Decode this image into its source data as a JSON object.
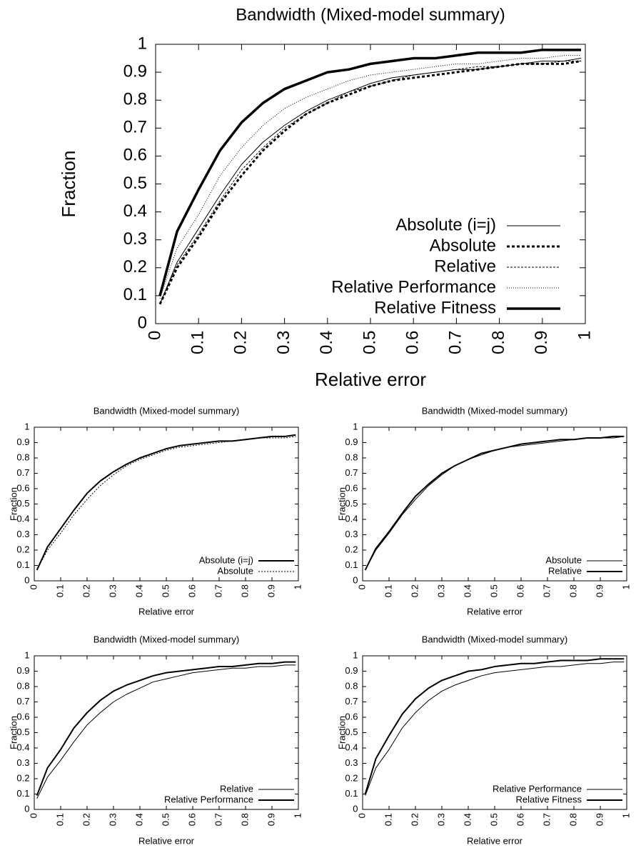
{
  "chart_data": [
    {
      "type": "line",
      "title": "Bandwidth (Mixed-model summary)",
      "xlabel": "Relative error",
      "ylabel": "Fraction",
      "xlim": [
        0,
        1
      ],
      "ylim": [
        0,
        1
      ],
      "xticks": [
        0,
        0.1,
        0.2,
        0.3,
        0.4,
        0.5,
        0.6,
        0.7,
        0.8,
        0.9,
        1
      ],
      "yticks": [
        0,
        0.1,
        0.2,
        0.3,
        0.4,
        0.5,
        0.6,
        0.7,
        0.8,
        0.9,
        1
      ],
      "grid": false,
      "legend": "lower right",
      "x": [
        0.01,
        0.05,
        0.1,
        0.15,
        0.2,
        0.25,
        0.3,
        0.35,
        0.4,
        0.45,
        0.5,
        0.55,
        0.6,
        0.65,
        0.7,
        0.75,
        0.8,
        0.85,
        0.9,
        0.95,
        0.99
      ],
      "series": [
        {
          "name": "Absolute (i=j)",
          "color": "#000000",
          "width": 1,
          "dash": "none",
          "values": [
            0.07,
            0.22,
            0.34,
            0.46,
            0.57,
            0.65,
            0.71,
            0.76,
            0.8,
            0.83,
            0.86,
            0.88,
            0.89,
            0.9,
            0.91,
            0.91,
            0.92,
            0.93,
            0.94,
            0.94,
            0.95
          ]
        },
        {
          "name": "Absolute",
          "color": "#000000",
          "width": 3,
          "dash": "4,3",
          "values": [
            0.07,
            0.2,
            0.31,
            0.43,
            0.53,
            0.62,
            0.69,
            0.75,
            0.79,
            0.82,
            0.85,
            0.87,
            0.88,
            0.89,
            0.9,
            0.91,
            0.92,
            0.93,
            0.93,
            0.93,
            0.94
          ]
        },
        {
          "name": "Relative",
          "color": "#000000",
          "width": 1,
          "dash": "3,2",
          "values": [
            0.07,
            0.21,
            0.32,
            0.44,
            0.55,
            0.63,
            0.7,
            0.75,
            0.79,
            0.83,
            0.85,
            0.87,
            0.89,
            0.9,
            0.91,
            0.92,
            0.92,
            0.93,
            0.93,
            0.94,
            0.94
          ]
        },
        {
          "name": "Relative Performance",
          "color": "#000000",
          "width": 1,
          "dash": "1,2",
          "values": [
            0.09,
            0.27,
            0.39,
            0.53,
            0.63,
            0.71,
            0.77,
            0.81,
            0.84,
            0.87,
            0.89,
            0.9,
            0.91,
            0.92,
            0.93,
            0.93,
            0.94,
            0.95,
            0.95,
            0.96,
            0.96
          ]
        },
        {
          "name": "Relative Fitness",
          "color": "#000000",
          "width": 3.5,
          "dash": "none",
          "values": [
            0.1,
            0.33,
            0.48,
            0.62,
            0.72,
            0.79,
            0.84,
            0.87,
            0.9,
            0.91,
            0.93,
            0.94,
            0.95,
            0.95,
            0.96,
            0.97,
            0.97,
            0.97,
            0.98,
            0.98,
            0.98
          ]
        }
      ]
    },
    {
      "type": "line",
      "title": "Bandwidth (Mixed-model summary)",
      "xlabel": "Relative error",
      "ylabel": "Fraction",
      "xlim": [
        0,
        1
      ],
      "ylim": [
        0,
        1
      ],
      "xticks": [
        0,
        0.1,
        0.2,
        0.3,
        0.4,
        0.5,
        0.6,
        0.7,
        0.8,
        0.9,
        1
      ],
      "yticks": [
        0,
        0.1,
        0.2,
        0.3,
        0.4,
        0.5,
        0.6,
        0.7,
        0.8,
        0.9,
        1
      ],
      "grid": false,
      "legend": "lower right",
      "x": [
        0.01,
        0.05,
        0.1,
        0.15,
        0.2,
        0.25,
        0.3,
        0.35,
        0.4,
        0.45,
        0.5,
        0.55,
        0.6,
        0.65,
        0.7,
        0.75,
        0.8,
        0.85,
        0.9,
        0.95,
        0.99
      ],
      "series": [
        {
          "name": "Absolute (i=j)",
          "color": "#000000",
          "width": 2,
          "dash": "none",
          "values": [
            0.07,
            0.22,
            0.34,
            0.46,
            0.57,
            0.65,
            0.71,
            0.76,
            0.8,
            0.83,
            0.86,
            0.88,
            0.89,
            0.9,
            0.91,
            0.91,
            0.92,
            0.93,
            0.94,
            0.94,
            0.95
          ]
        },
        {
          "name": "Absolute",
          "color": "#000000",
          "width": 1,
          "dash": "2,2",
          "values": [
            0.07,
            0.2,
            0.31,
            0.43,
            0.53,
            0.62,
            0.69,
            0.75,
            0.79,
            0.82,
            0.85,
            0.87,
            0.88,
            0.89,
            0.9,
            0.91,
            0.92,
            0.93,
            0.93,
            0.93,
            0.94
          ]
        }
      ]
    },
    {
      "type": "line",
      "title": "Bandwidth (Mixed-model summary)",
      "xlabel": "Relative error",
      "ylabel": "Fraction",
      "xlim": [
        0,
        1
      ],
      "ylim": [
        0,
        1
      ],
      "xticks": [
        0,
        0.1,
        0.2,
        0.3,
        0.4,
        0.5,
        0.6,
        0.7,
        0.8,
        0.9,
        1
      ],
      "yticks": [
        0,
        0.1,
        0.2,
        0.3,
        0.4,
        0.5,
        0.6,
        0.7,
        0.8,
        0.9,
        1
      ],
      "grid": false,
      "legend": "lower right",
      "x": [
        0.01,
        0.05,
        0.1,
        0.15,
        0.2,
        0.25,
        0.3,
        0.35,
        0.4,
        0.45,
        0.5,
        0.55,
        0.6,
        0.65,
        0.7,
        0.75,
        0.8,
        0.85,
        0.9,
        0.95,
        0.99
      ],
      "series": [
        {
          "name": "Absolute",
          "color": "#000000",
          "width": 1,
          "dash": "none",
          "values": [
            0.07,
            0.2,
            0.31,
            0.43,
            0.53,
            0.62,
            0.69,
            0.75,
            0.79,
            0.82,
            0.85,
            0.87,
            0.88,
            0.89,
            0.9,
            0.91,
            0.92,
            0.93,
            0.93,
            0.93,
            0.94
          ]
        },
        {
          "name": "Relative",
          "color": "#000000",
          "width": 2,
          "dash": "none",
          "values": [
            0.07,
            0.21,
            0.32,
            0.44,
            0.55,
            0.63,
            0.7,
            0.75,
            0.79,
            0.83,
            0.85,
            0.87,
            0.89,
            0.9,
            0.91,
            0.92,
            0.92,
            0.93,
            0.93,
            0.94,
            0.94
          ]
        }
      ]
    },
    {
      "type": "line",
      "title": "Bandwidth (Mixed-model summary)",
      "xlabel": "Relative error",
      "ylabel": "Fraction",
      "xlim": [
        0,
        1
      ],
      "ylim": [
        0,
        1
      ],
      "xticks": [
        0,
        0.1,
        0.2,
        0.3,
        0.4,
        0.5,
        0.6,
        0.7,
        0.8,
        0.9,
        1
      ],
      "yticks": [
        0,
        0.1,
        0.2,
        0.3,
        0.4,
        0.5,
        0.6,
        0.7,
        0.8,
        0.9,
        1
      ],
      "grid": false,
      "legend": "lower right",
      "x": [
        0.01,
        0.05,
        0.1,
        0.15,
        0.2,
        0.25,
        0.3,
        0.35,
        0.4,
        0.45,
        0.5,
        0.55,
        0.6,
        0.65,
        0.7,
        0.75,
        0.8,
        0.85,
        0.9,
        0.95,
        0.99
      ],
      "series": [
        {
          "name": "Relative",
          "color": "#000000",
          "width": 1,
          "dash": "none",
          "values": [
            0.07,
            0.21,
            0.32,
            0.44,
            0.55,
            0.63,
            0.7,
            0.75,
            0.79,
            0.83,
            0.85,
            0.87,
            0.89,
            0.9,
            0.91,
            0.92,
            0.92,
            0.93,
            0.93,
            0.94,
            0.94
          ]
        },
        {
          "name": "Relative Performance",
          "color": "#000000",
          "width": 2,
          "dash": "none",
          "values": [
            0.09,
            0.27,
            0.39,
            0.53,
            0.63,
            0.71,
            0.77,
            0.81,
            0.84,
            0.87,
            0.89,
            0.9,
            0.91,
            0.92,
            0.93,
            0.93,
            0.94,
            0.95,
            0.95,
            0.96,
            0.96
          ]
        }
      ]
    },
    {
      "type": "line",
      "title": "Bandwidth (Mixed-model summary)",
      "xlabel": "Relative error",
      "ylabel": "Fraction",
      "xlim": [
        0,
        1
      ],
      "ylim": [
        0,
        1
      ],
      "xticks": [
        0,
        0.1,
        0.2,
        0.3,
        0.4,
        0.5,
        0.6,
        0.7,
        0.8,
        0.9,
        1
      ],
      "yticks": [
        0,
        0.1,
        0.2,
        0.3,
        0.4,
        0.5,
        0.6,
        0.7,
        0.8,
        0.9,
        1
      ],
      "grid": false,
      "legend": "lower right",
      "x": [
        0.01,
        0.05,
        0.1,
        0.15,
        0.2,
        0.25,
        0.3,
        0.35,
        0.4,
        0.45,
        0.5,
        0.55,
        0.6,
        0.65,
        0.7,
        0.75,
        0.8,
        0.85,
        0.9,
        0.95,
        0.99
      ],
      "series": [
        {
          "name": "Relative Performance",
          "color": "#000000",
          "width": 1,
          "dash": "none",
          "values": [
            0.09,
            0.27,
            0.39,
            0.53,
            0.63,
            0.71,
            0.77,
            0.81,
            0.84,
            0.87,
            0.89,
            0.9,
            0.91,
            0.92,
            0.93,
            0.93,
            0.94,
            0.95,
            0.95,
            0.96,
            0.96
          ]
        },
        {
          "name": "Relative Fitness",
          "color": "#000000",
          "width": 2,
          "dash": "none",
          "values": [
            0.1,
            0.33,
            0.48,
            0.62,
            0.72,
            0.79,
            0.84,
            0.87,
            0.9,
            0.91,
            0.93,
            0.94,
            0.95,
            0.95,
            0.96,
            0.97,
            0.97,
            0.97,
            0.98,
            0.98,
            0.98
          ]
        }
      ]
    }
  ]
}
